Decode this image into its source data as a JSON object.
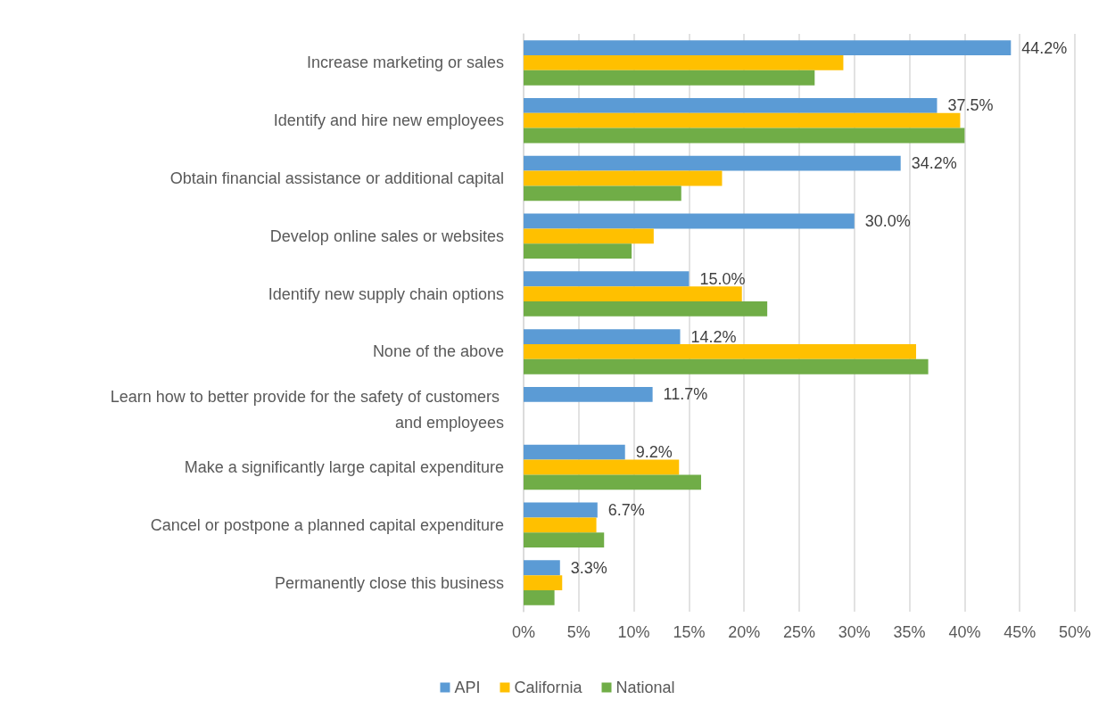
{
  "chart_data": {
    "type": "bar",
    "orientation": "horizontal",
    "categories": [
      "Increase marketing or sales",
      "Identify and hire new employees",
      "Obtain financial assistance or additional capital",
      "Develop online sales or websites",
      "Identify new supply chain options",
      "None of the above",
      "Learn how to better provide for the safety of customers and employees",
      "Make a significantly large capital expenditure",
      "Cancel or postpone a planned capital expenditure",
      "Permanently close this business"
    ],
    "series": [
      {
        "name": "API",
        "color": "#5b9bd5",
        "values": [
          44.2,
          37.5,
          34.2,
          30.0,
          15.0,
          14.2,
          11.7,
          9.2,
          6.7,
          3.3
        ],
        "value_labels": [
          "44.2%",
          "37.5%",
          "34.2%",
          "30.0%",
          "15.0%",
          "14.2%",
          "11.7%",
          "9.2%",
          "6.7%",
          "3.3%"
        ]
      },
      {
        "name": "California",
        "color": "#ffc000",
        "values": [
          29.0,
          39.6,
          18.0,
          11.8,
          19.8,
          35.6,
          null,
          14.1,
          6.6,
          3.5
        ]
      },
      {
        "name": "National",
        "color": "#70ad47",
        "values": [
          26.4,
          40.0,
          14.3,
          9.8,
          22.1,
          36.7,
          null,
          16.1,
          7.3,
          2.8
        ]
      }
    ],
    "xlim": [
      0,
      50
    ],
    "xticks": [
      {
        "value": 0,
        "label": "0%"
      },
      {
        "value": 5,
        "label": "5%"
      },
      {
        "value": 10,
        "label": "10%"
      },
      {
        "value": 15,
        "label": "15%"
      },
      {
        "value": 20,
        "label": "20%"
      },
      {
        "value": 25,
        "label": "25%"
      },
      {
        "value": 30,
        "label": "30%"
      },
      {
        "value": 35,
        "label": "35%"
      },
      {
        "value": 40,
        "label": "40%"
      },
      {
        "value": 45,
        "label": "45%"
      },
      {
        "value": 50,
        "label": "50%"
      }
    ],
    "grid": "x",
    "legend": "bottom"
  }
}
